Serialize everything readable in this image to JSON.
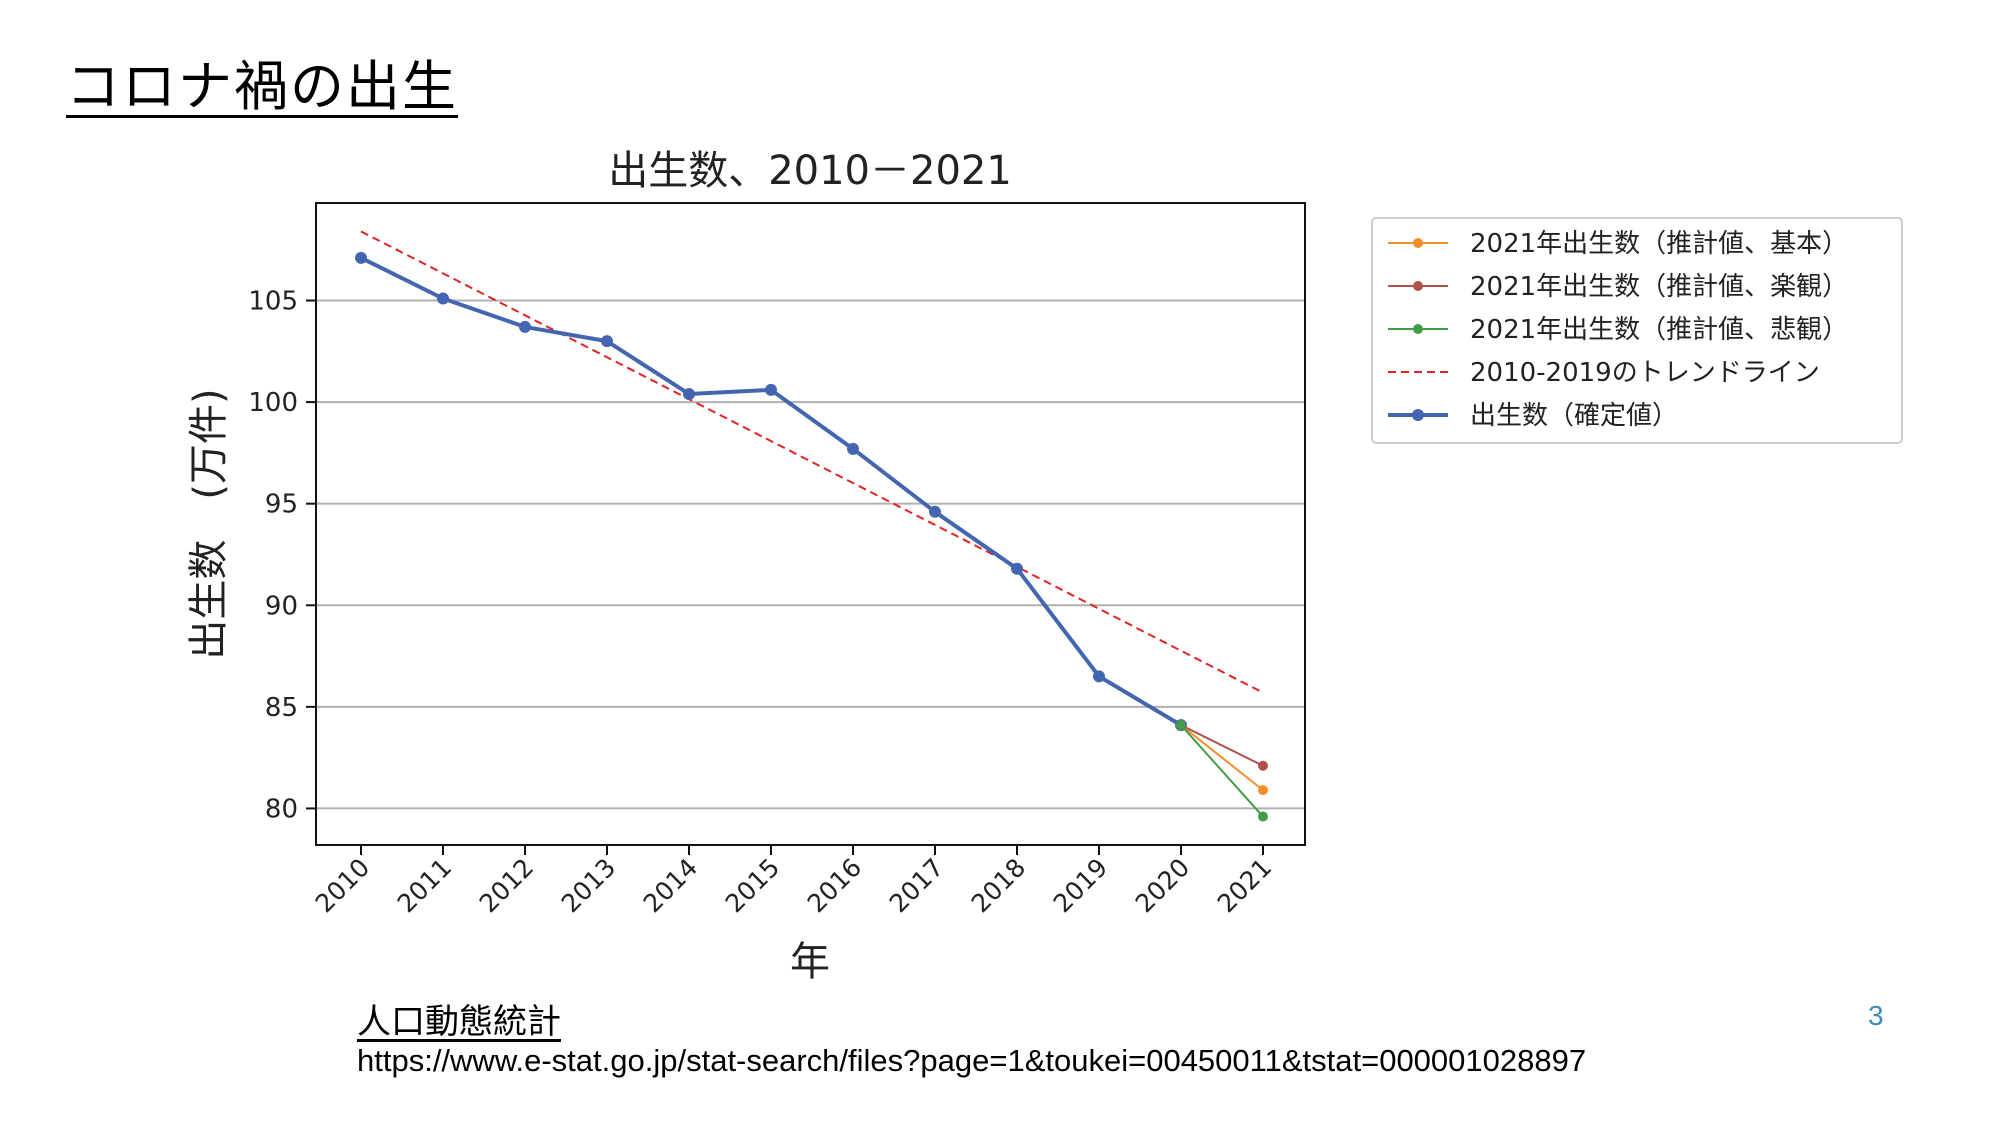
{
  "slide": {
    "title": "コロナ禍の出生",
    "source_title": "人口動態統計",
    "source_url": "https://www.e-stat.go.jp/stat-search/files?page=1&toukei=00450011&tstat=000001028897",
    "page_number": "3"
  },
  "chart_data": {
    "type": "line",
    "title": "出生数、2010－2021",
    "xlabel": "年",
    "ylabel": "出生数　(万件)",
    "categories": [
      "2010",
      "2011",
      "2012",
      "2013",
      "2014",
      "2015",
      "2016",
      "2017",
      "2018",
      "2019",
      "2020",
      "2021"
    ],
    "ylim": [
      78.2,
      109.8
    ],
    "yticks": [
      80,
      85,
      90,
      95,
      100,
      105
    ],
    "grid": "horizontal",
    "legend_position": "outside-right",
    "series": [
      {
        "name": "2021年出生数（推計値、基本）",
        "color": "#f28e2b",
        "style": "line-marker",
        "x": [
          "2020",
          "2021"
        ],
        "values": [
          84.1,
          80.9
        ]
      },
      {
        "name": "2021年出生数（推計値、楽観）",
        "color": "#b0504a",
        "style": "line-marker",
        "x": [
          "2020",
          "2021"
        ],
        "values": [
          84.1,
          82.1
        ]
      },
      {
        "name": "2021年出生数（推計値、悲観）",
        "color": "#3f9e46",
        "style": "line-marker",
        "x": [
          "2020",
          "2021"
        ],
        "values": [
          84.1,
          79.6
        ]
      },
      {
        "name": "2010-2019のトレンドライン",
        "color": "#e32222",
        "style": "dashed",
        "x": [
          "2010",
          "2021"
        ],
        "values": [
          108.4,
          85.7
        ]
      },
      {
        "name": "出生数（確定値）",
        "color": "#4466b0",
        "style": "line-marker-thick",
        "x": [
          "2010",
          "2011",
          "2012",
          "2013",
          "2014",
          "2015",
          "2016",
          "2017",
          "2018",
          "2019",
          "2020"
        ],
        "values": [
          107.1,
          105.1,
          103.7,
          103.0,
          100.4,
          100.6,
          97.7,
          94.6,
          91.8,
          86.5,
          84.1
        ]
      }
    ]
  }
}
